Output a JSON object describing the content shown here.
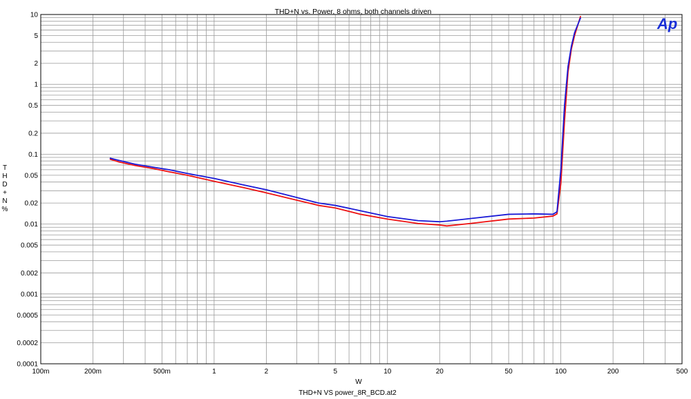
{
  "chart_data": {
    "type": "line",
    "title": "THD+N vs. Power, 8 ohms, both channels driven",
    "xlabel": "W",
    "ylabel": [
      "T",
      "H",
      "D",
      "+",
      "N",
      "%"
    ],
    "footer": "THD+N VS power_8R_BCD.at2",
    "logo": "Ap",
    "x_scale": "log",
    "y_scale": "log",
    "xlim": [
      0.1,
      500
    ],
    "ylim": [
      0.0001,
      10
    ],
    "grid": true,
    "x_ticks": [
      {
        "v": 0.1,
        "label": "100m"
      },
      {
        "v": 0.2,
        "label": "200m"
      },
      {
        "v": 0.5,
        "label": "500m"
      },
      {
        "v": 1,
        "label": "1"
      },
      {
        "v": 2,
        "label": "2"
      },
      {
        "v": 5,
        "label": "5"
      },
      {
        "v": 10,
        "label": "10"
      },
      {
        "v": 20,
        "label": "20"
      },
      {
        "v": 50,
        "label": "50"
      },
      {
        "v": 100,
        "label": "100"
      },
      {
        "v": 200,
        "label": "200"
      },
      {
        "v": 500,
        "label": "500"
      }
    ],
    "y_ticks": [
      {
        "v": 10,
        "label": "10"
      },
      {
        "v": 5,
        "label": "5"
      },
      {
        "v": 2,
        "label": "2"
      },
      {
        "v": 1,
        "label": "1"
      },
      {
        "v": 0.5,
        "label": "0.5"
      },
      {
        "v": 0.2,
        "label": "0.2"
      },
      {
        "v": 0.1,
        "label": "0.1"
      },
      {
        "v": 0.05,
        "label": "0.05"
      },
      {
        "v": 0.02,
        "label": "0.02"
      },
      {
        "v": 0.01,
        "label": "0.01"
      },
      {
        "v": 0.005,
        "label": "0.005"
      },
      {
        "v": 0.002,
        "label": "0.002"
      },
      {
        "v": 0.001,
        "label": "0.001"
      },
      {
        "v": 0.0005,
        "label": "0.0005"
      },
      {
        "v": 0.0002,
        "label": "0.0002"
      },
      {
        "v": 0.0001,
        "label": "0.0001"
      }
    ],
    "series": [
      {
        "color": "#ee1111",
        "points": [
          [
            0.25,
            0.085
          ],
          [
            0.28,
            0.078
          ],
          [
            0.35,
            0.069
          ],
          [
            0.45,
            0.062
          ],
          [
            0.55,
            0.056
          ],
          [
            0.7,
            0.05
          ],
          [
            1.0,
            0.041
          ],
          [
            1.5,
            0.033
          ],
          [
            2.0,
            0.028
          ],
          [
            3.0,
            0.022
          ],
          [
            4.0,
            0.0185
          ],
          [
            5.0,
            0.017
          ],
          [
            7.0,
            0.0138
          ],
          [
            10.0,
            0.0118
          ],
          [
            15.0,
            0.0102
          ],
          [
            20.0,
            0.0097
          ],
          [
            22.0,
            0.0094
          ],
          [
            30.0,
            0.0102
          ],
          [
            50.0,
            0.0118
          ],
          [
            70.0,
            0.0122
          ],
          [
            90.0,
            0.013
          ],
          [
            95.0,
            0.014
          ],
          [
            100.0,
            0.038
          ],
          [
            105.0,
            0.3
          ],
          [
            110.0,
            1.5
          ],
          [
            115.0,
            3.2
          ],
          [
            120.0,
            5.0
          ],
          [
            130.0,
            9.5
          ]
        ]
      },
      {
        "color": "#1a1ad6",
        "points": [
          [
            0.25,
            0.088
          ],
          [
            0.28,
            0.082
          ],
          [
            0.35,
            0.072
          ],
          [
            0.45,
            0.065
          ],
          [
            0.55,
            0.06
          ],
          [
            0.7,
            0.053
          ],
          [
            1.0,
            0.045
          ],
          [
            1.5,
            0.036
          ],
          [
            2.0,
            0.031
          ],
          [
            3.0,
            0.024
          ],
          [
            4.0,
            0.02
          ],
          [
            5.0,
            0.0185
          ],
          [
            7.0,
            0.0155
          ],
          [
            10.0,
            0.0128
          ],
          [
            15.0,
            0.0112
          ],
          [
            20.0,
            0.0108
          ],
          [
            22.0,
            0.011
          ],
          [
            30.0,
            0.012
          ],
          [
            50.0,
            0.0138
          ],
          [
            70.0,
            0.014
          ],
          [
            90.0,
            0.0138
          ],
          [
            95.0,
            0.015
          ],
          [
            100.0,
            0.06
          ],
          [
            105.0,
            0.5
          ],
          [
            110.0,
            1.8
          ],
          [
            115.0,
            3.5
          ],
          [
            120.0,
            5.5
          ],
          [
            130.0,
            9.0
          ]
        ]
      }
    ]
  }
}
